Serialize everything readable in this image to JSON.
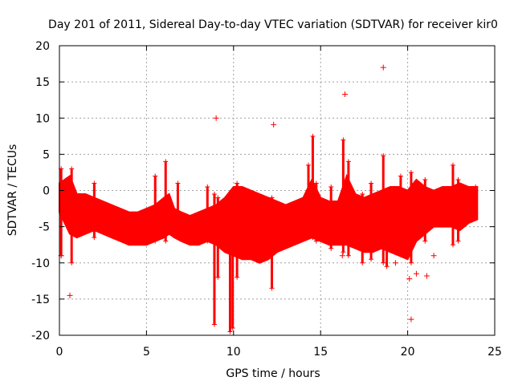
{
  "chart_data": {
    "type": "scatter",
    "title": "Day 201 of 2011, Sidereal Day-to-day VTEC variation (SDTVAR) for receiver kir0",
    "xlabel": "GPS time / hours",
    "ylabel": "SDTVAR / TECUs",
    "xlim": [
      0,
      25
    ],
    "ylim": [
      -20,
      20
    ],
    "xticks": [
      0,
      5,
      10,
      15,
      20,
      25
    ],
    "yticks": [
      -20,
      -15,
      -10,
      -5,
      0,
      5,
      10,
      15,
      20
    ],
    "grid": true,
    "marker": "+",
    "color": "#ff0000",
    "series": [
      {
        "name": "kir0",
        "band_points": [
          [
            0.0,
            -3.0,
            1.0
          ],
          [
            0.3,
            -4.5,
            1.5
          ],
          [
            0.6,
            -6.0,
            2.0
          ],
          [
            1.0,
            -6.5,
            -0.5
          ],
          [
            1.5,
            -6.0,
            -0.5
          ],
          [
            2.0,
            -5.5,
            -1.0
          ],
          [
            2.5,
            -6.0,
            -1.5
          ],
          [
            3.0,
            -6.5,
            -2.0
          ],
          [
            3.5,
            -7.0,
            -2.5
          ],
          [
            4.0,
            -7.5,
            -3.0
          ],
          [
            4.5,
            -7.5,
            -3.0
          ],
          [
            5.0,
            -7.5,
            -2.5
          ],
          [
            5.5,
            -7.0,
            -2.0
          ],
          [
            6.0,
            -6.5,
            -1.0
          ],
          [
            6.3,
            -6.0,
            -0.5
          ],
          [
            6.6,
            -6.5,
            -2.5
          ],
          [
            7.0,
            -7.0,
            -3.0
          ],
          [
            7.5,
            -7.5,
            -3.5
          ],
          [
            8.0,
            -7.5,
            -3.0
          ],
          [
            8.5,
            -7.0,
            -2.5
          ],
          [
            9.0,
            -7.5,
            -2.0
          ],
          [
            9.5,
            -8.5,
            -1.0
          ],
          [
            10.0,
            -9.0,
            0.5
          ],
          [
            10.5,
            -9.5,
            0.5
          ],
          [
            11.0,
            -9.5,
            0.0
          ],
          [
            11.5,
            -10.0,
            -0.5
          ],
          [
            12.0,
            -9.5,
            -1.0
          ],
          [
            12.5,
            -8.5,
            -1.5
          ],
          [
            13.0,
            -8.0,
            -2.0
          ],
          [
            13.5,
            -7.5,
            -1.5
          ],
          [
            14.0,
            -7.0,
            -1.0
          ],
          [
            14.5,
            -6.5,
            1.5
          ],
          [
            15.0,
            -7.0,
            -1.0
          ],
          [
            15.5,
            -7.5,
            -1.5
          ],
          [
            16.0,
            -7.5,
            -1.5
          ],
          [
            16.5,
            -7.5,
            2.0
          ],
          [
            17.0,
            -8.0,
            -0.5
          ],
          [
            17.5,
            -8.5,
            -1.0
          ],
          [
            18.0,
            -8.5,
            -0.5
          ],
          [
            18.5,
            -8.0,
            0.0
          ],
          [
            19.0,
            -8.5,
            0.5
          ],
          [
            19.5,
            -9.0,
            0.5
          ],
          [
            20.0,
            -9.5,
            0.0
          ],
          [
            20.5,
            -7.0,
            1.5
          ],
          [
            21.0,
            -6.0,
            0.5
          ],
          [
            21.5,
            -5.0,
            0.0
          ],
          [
            22.0,
            -5.0,
            0.5
          ],
          [
            22.5,
            -5.0,
            0.5
          ],
          [
            23.0,
            -5.5,
            1.0
          ],
          [
            23.5,
            -4.5,
            0.5
          ],
          [
            24.0,
            -4.0,
            0.5
          ]
        ],
        "spikes": [
          [
            0.1,
            -9.0,
            3.0
          ],
          [
            0.7,
            -10.0,
            3.0
          ],
          [
            2.0,
            -6.5,
            1.0
          ],
          [
            5.5,
            -7.0,
            2.0
          ],
          [
            6.1,
            -7.0,
            4.0
          ],
          [
            6.8,
            -6.0,
            1.0
          ],
          [
            8.5,
            -7.0,
            0.5
          ],
          [
            8.9,
            -18.5,
            -0.5
          ],
          [
            9.1,
            -12.0,
            -1.0
          ],
          [
            9.8,
            -19.5,
            -0.5
          ],
          [
            9.95,
            -19.0,
            -1.0
          ],
          [
            10.2,
            -12.0,
            1.0
          ],
          [
            12.2,
            -13.5,
            -1.0
          ],
          [
            14.3,
            -6.0,
            3.5
          ],
          [
            14.55,
            -6.5,
            7.5
          ],
          [
            14.75,
            -7.0,
            1.0
          ],
          [
            15.6,
            -8.0,
            0.5
          ],
          [
            16.3,
            -8.5,
            7.0
          ],
          [
            16.6,
            -9.0,
            4.0
          ],
          [
            17.4,
            -10.0,
            -0.5
          ],
          [
            17.9,
            -9.5,
            1.0
          ],
          [
            18.6,
            -10.0,
            4.8
          ],
          [
            18.8,
            -10.5,
            0.0
          ],
          [
            19.6,
            -8.5,
            2.0
          ],
          [
            20.2,
            -10.0,
            2.5
          ],
          [
            21.0,
            -7.0,
            1.5
          ],
          [
            22.6,
            -7.5,
            3.5
          ],
          [
            22.9,
            -7.0,
            1.5
          ],
          [
            23.9,
            -3.5,
            0.5
          ]
        ],
        "outliers": [
          [
            0.6,
            -14.5
          ],
          [
            9.0,
            10.0
          ],
          [
            12.3,
            9.1
          ],
          [
            16.4,
            13.3
          ],
          [
            18.6,
            17.0
          ],
          [
            20.1,
            -12.2
          ],
          [
            20.2,
            -17.8
          ],
          [
            20.5,
            -11.5
          ],
          [
            21.1,
            -11.8
          ],
          [
            21.5,
            -9.0
          ],
          [
            16.25,
            -9.0
          ],
          [
            0.1,
            -9.0
          ],
          [
            19.3,
            -10.0
          ]
        ]
      }
    ]
  }
}
